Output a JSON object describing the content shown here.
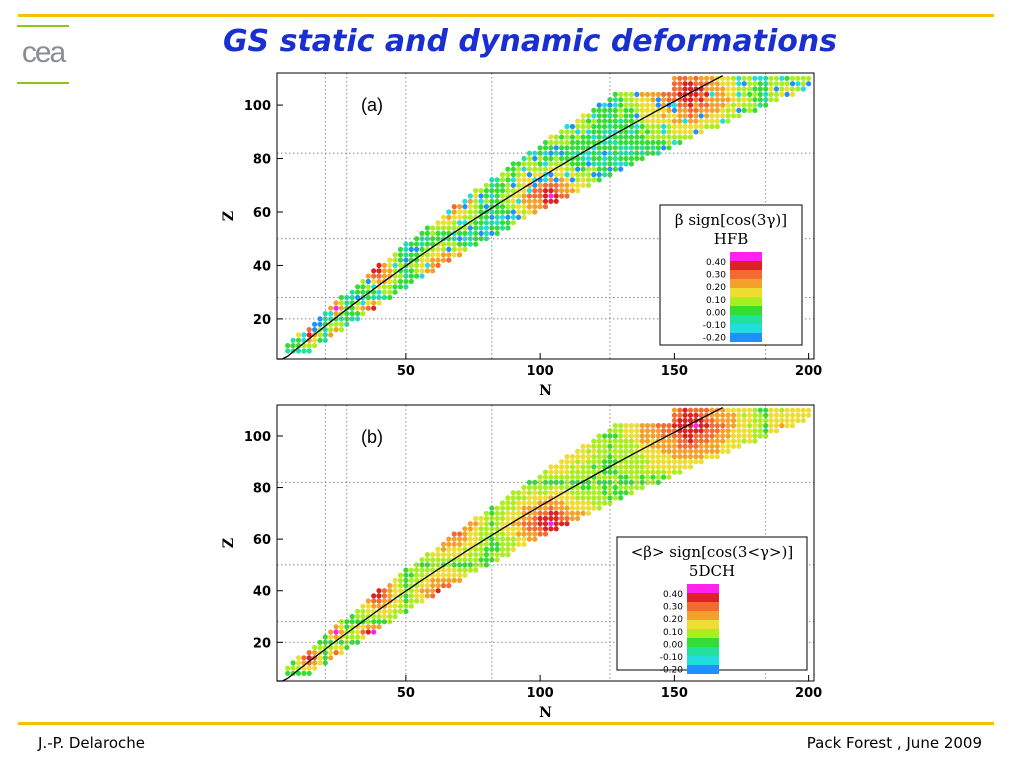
{
  "header": {
    "title": "GS static and dynamic deformations",
    "logo_text": "cea"
  },
  "footer": {
    "author": "J.-P. Delaroche",
    "venue": "Pack Forest , June 2009"
  },
  "colors": {
    "rule": "#f2c200",
    "logo_green": "#8fc21f",
    "title": "#1a2fd0",
    "scale": [
      "#1e90ff",
      "#22dddd",
      "#22e0a0",
      "#33dd33",
      "#aaee22",
      "#eedd33",
      "#f5a02a",
      "#f56a33",
      "#dd2222",
      "#ff22ee"
    ]
  },
  "chart_data": [
    {
      "type": "heatmap",
      "panel_label": "(a)",
      "xlabel": "N",
      "ylabel": "Z",
      "xlim": [
        2,
        202
      ],
      "ylim": [
        5,
        112
      ],
      "xticks": [
        50,
        100,
        150,
        200
      ],
      "yticks": [
        20,
        40,
        60,
        80,
        100
      ],
      "magic_numbers": [
        20,
        28,
        50,
        82,
        126,
        184
      ],
      "magic_lines_on_z_axis": [
        20,
        28,
        50,
        82
      ],
      "curve": "valley of beta stability",
      "legend": {
        "title_line1": "β sign[cos(3γ)]",
        "title_line2": "HFB",
        "placement": "right",
        "levels": [
          "0.40",
          "0.30",
          "0.20",
          "0.10",
          "0.00",
          "-0.10",
          "-0.20"
        ]
      },
      "note": "Per-nucleus values of the deformation quantity, ranging about -0.2 to 0.45; largest near mid-shell regions (N≈100, Z≈66), small near magic numbers"
    },
    {
      "type": "heatmap",
      "panel_label": "(b)",
      "xlabel": "N",
      "ylabel": "Z",
      "xlim": [
        2,
        202
      ],
      "ylim": [
        5,
        112
      ],
      "xticks": [
        50,
        100,
        150,
        200
      ],
      "yticks": [
        20,
        40,
        60,
        80,
        100
      ],
      "magic_numbers": [
        20,
        28,
        50,
        82,
        126,
        184
      ],
      "magic_lines_on_z_axis": [
        20,
        28,
        50,
        82
      ],
      "curve": "valley of beta stability",
      "legend": {
        "title_line1": "<β> sign[cos(3<γ>)]",
        "title_line2": "5DCH",
        "placement": "right",
        "levels": [
          "0.40",
          "0.30",
          "0.20",
          "0.10",
          "0.00",
          "-0.10",
          "-0.20"
        ]
      },
      "note": "Dynamic (5DCH) mean deformations; mostly positive 0.1-0.4, fewer negative values than HFB"
    }
  ]
}
